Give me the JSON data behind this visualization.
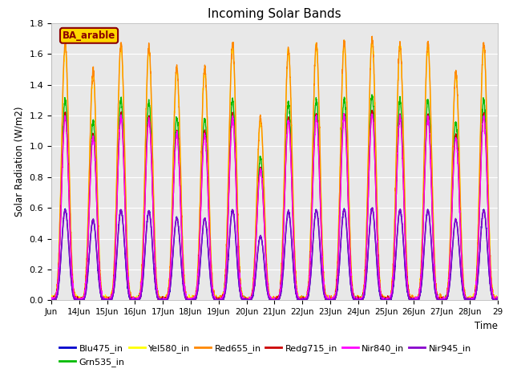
{
  "title": "Incoming Solar Bands",
  "xlabel": "Time",
  "ylabel": "Solar Radiation (W/m2)",
  "annotation": "BA_arable",
  "annotation_color": "#8B0000",
  "annotation_bg": "#FFD700",
  "ylim": [
    0.0,
    1.8
  ],
  "yticks": [
    0.0,
    0.2,
    0.4,
    0.6,
    0.8,
    1.0,
    1.2,
    1.4,
    1.6,
    1.8
  ],
  "xtick_labels": [
    "Jun",
    "14Jun",
    "15Jun",
    "16Jun",
    "17Jun",
    "18Jun",
    "19Jun",
    "20Jun",
    "21Jun",
    "22Jun",
    "23Jun",
    "24Jun",
    "25Jun",
    "26Jun",
    "27Jun",
    "28Jun",
    "29"
  ],
  "series": [
    {
      "name": "Blu475_in",
      "color": "#0000CC",
      "lw": 1.0,
      "zorder": 3
    },
    {
      "name": "Grn535_in",
      "color": "#00BB00",
      "lw": 1.0,
      "zorder": 4
    },
    {
      "name": "Yel580_in",
      "color": "#FFFF00",
      "lw": 1.0,
      "zorder": 5
    },
    {
      "name": "Red655_in",
      "color": "#FF8800",
      "lw": 1.0,
      "zorder": 6
    },
    {
      "name": "Redg715_in",
      "color": "#CC0000",
      "lw": 1.0,
      "zorder": 7
    },
    {
      "name": "Nir840_in",
      "color": "#FF00FF",
      "lw": 1.0,
      "zorder": 8
    },
    {
      "name": "Nir945_in",
      "color": "#8800CC",
      "lw": 1.0,
      "zorder": 9
    }
  ],
  "n_days": 16,
  "start_day": 13,
  "scale_factors": {
    "Blu475_in": 0.355,
    "Grn535_in": 0.79,
    "Yel580_in": 1.0,
    "Red655_in": 1.01,
    "Redg715_in": 0.73,
    "Nir840_in": 0.72,
    "Nir945_in": 0.355
  },
  "day_peaks": [
    1.65,
    1.47,
    1.65,
    1.63,
    1.58,
    1.57,
    1.65,
    1.63,
    1.62,
    1.65,
    1.66,
    1.68,
    1.65,
    1.65,
    1.65,
    1.65
  ],
  "cloud_factor": [
    1.0,
    1.0,
    1.0,
    1.0,
    0.95,
    0.95,
    1.0,
    0.72,
    1.0,
    1.0,
    1.0,
    1.0,
    1.0,
    1.0,
    0.89,
    1.0
  ],
  "bg_color": "#E8E8E8",
  "fig_bg": "#FFFFFF",
  "legend_items": [
    {
      "name": "Blu475_in",
      "color": "#0000CC"
    },
    {
      "name": "Grn535_in",
      "color": "#00BB00"
    },
    {
      "name": "Yel580_in",
      "color": "#FFFF00"
    },
    {
      "name": "Red655_in",
      "color": "#FF8800"
    },
    {
      "name": "Redg715_in",
      "color": "#CC0000"
    },
    {
      "name": "Nir840_in",
      "color": "#FF00FF"
    },
    {
      "name": "Nir945_in",
      "color": "#8800CC"
    }
  ]
}
